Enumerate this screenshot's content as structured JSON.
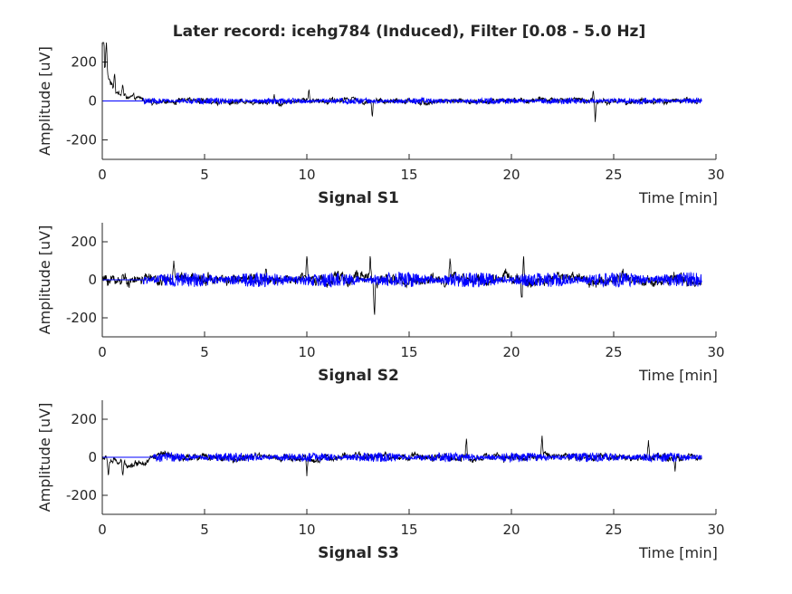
{
  "figure": {
    "title": "Later record: icehg784 (Induced), Filter [0.08 - 5.0 Hz]"
  },
  "colors": {
    "raw": "#000000",
    "filtered": "#0000ff",
    "axis": "#262626"
  },
  "chart_data": [
    {
      "type": "line",
      "label": "Signal S1",
      "xlabel": "Time [min]",
      "ylabel": "Amplitude [uV]",
      "xlim": [
        0,
        30
      ],
      "ylim": [
        -300,
        300
      ],
      "xticks": [
        0,
        5,
        10,
        15,
        20,
        25,
        30
      ],
      "yticks": [
        -200,
        0,
        200
      ],
      "x_end": 29.3,
      "filtered_start": 2.0,
      "raw_envelope": 18,
      "filtered_envelope": 16,
      "spikes": [
        {
          "x": 0.05,
          "y": 300
        },
        {
          "x": 0.2,
          "y": 170
        },
        {
          "x": 0.6,
          "y": 90
        },
        {
          "x": 1.0,
          "y": 60
        },
        {
          "x": 8.4,
          "y": 40
        },
        {
          "x": 10.1,
          "y": 50
        },
        {
          "x": 13.2,
          "y": -85
        },
        {
          "x": 24.0,
          "y": 60
        },
        {
          "x": 24.1,
          "y": -110
        }
      ],
      "series": [
        {
          "name": "raw"
        },
        {
          "name": "filtered"
        }
      ]
    },
    {
      "type": "line",
      "label": "Signal S2",
      "xlabel": "Time [min]",
      "ylabel": "Amplitude [uV]",
      "xlim": [
        0,
        30
      ],
      "ylim": [
        -300,
        300
      ],
      "xticks": [
        0,
        5,
        10,
        15,
        20,
        25,
        30
      ],
      "yticks": [
        -200,
        0,
        200
      ],
      "x_end": 29.3,
      "filtered_start": 2.0,
      "raw_envelope": 35,
      "filtered_envelope": 40,
      "spikes": [
        {
          "x": 1.0,
          "y": 45
        },
        {
          "x": 3.5,
          "y": 90
        },
        {
          "x": 8.0,
          "y": 90
        },
        {
          "x": 10.0,
          "y": 145
        },
        {
          "x": 13.1,
          "y": 110
        },
        {
          "x": 13.3,
          "y": -200
        },
        {
          "x": 17.0,
          "y": 80
        },
        {
          "x": 20.6,
          "y": 150
        },
        {
          "x": 20.5,
          "y": -110
        }
      ],
      "series": [
        {
          "name": "raw"
        },
        {
          "name": "filtered"
        }
      ]
    },
    {
      "type": "line",
      "label": "Signal S3",
      "xlabel": "Time [min]",
      "ylabel": "Amplitude [uV]",
      "xlim": [
        0,
        30
      ],
      "ylim": [
        -300,
        300
      ],
      "xticks": [
        0,
        5,
        10,
        15,
        20,
        25,
        30
      ],
      "yticks": [
        -200,
        0,
        200
      ],
      "x_end": 29.3,
      "filtered_start": 2.5,
      "raw_envelope": 22,
      "filtered_envelope": 25,
      "spikes": [
        {
          "x": 0.3,
          "y": -90
        },
        {
          "x": 1.0,
          "y": -80
        },
        {
          "x": 10.0,
          "y": -100
        },
        {
          "x": 17.8,
          "y": 110
        },
        {
          "x": 21.5,
          "y": 100
        },
        {
          "x": 26.7,
          "y": 90
        },
        {
          "x": 28.0,
          "y": -70
        }
      ],
      "series": [
        {
          "name": "raw"
        },
        {
          "name": "filtered"
        }
      ]
    }
  ]
}
